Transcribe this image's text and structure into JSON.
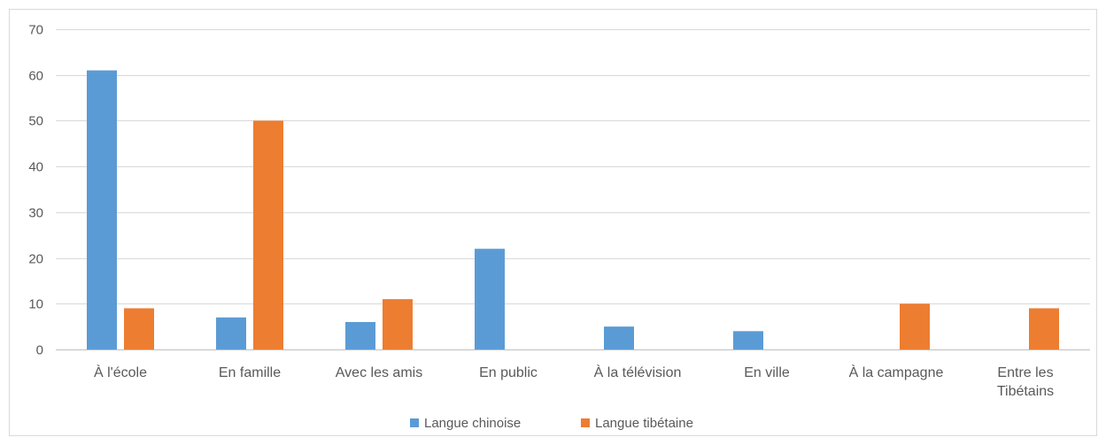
{
  "chart_data": {
    "type": "bar",
    "categories": [
      "À l'école",
      "En famille",
      "Avec les amis",
      "En public",
      "À la télévision",
      "En ville",
      "À la campagne",
      "Entre les Tibétains"
    ],
    "series": [
      {
        "name": "Langue chinoise",
        "color": "#5b9bd5",
        "values": [
          61,
          7,
          6,
          22,
          5,
          4,
          0,
          0
        ]
      },
      {
        "name": "Langue tibétaine",
        "color": "#ed7d31",
        "values": [
          9,
          50,
          11,
          0,
          0,
          0,
          10,
          9
        ]
      }
    ],
    "title": "",
    "xlabel": "",
    "ylabel": "",
    "ylim": [
      0,
      70
    ],
    "yticks": [
      0,
      10,
      20,
      30,
      40,
      50,
      60,
      70
    ],
    "grid": true,
    "legend_position": "bottom"
  }
}
